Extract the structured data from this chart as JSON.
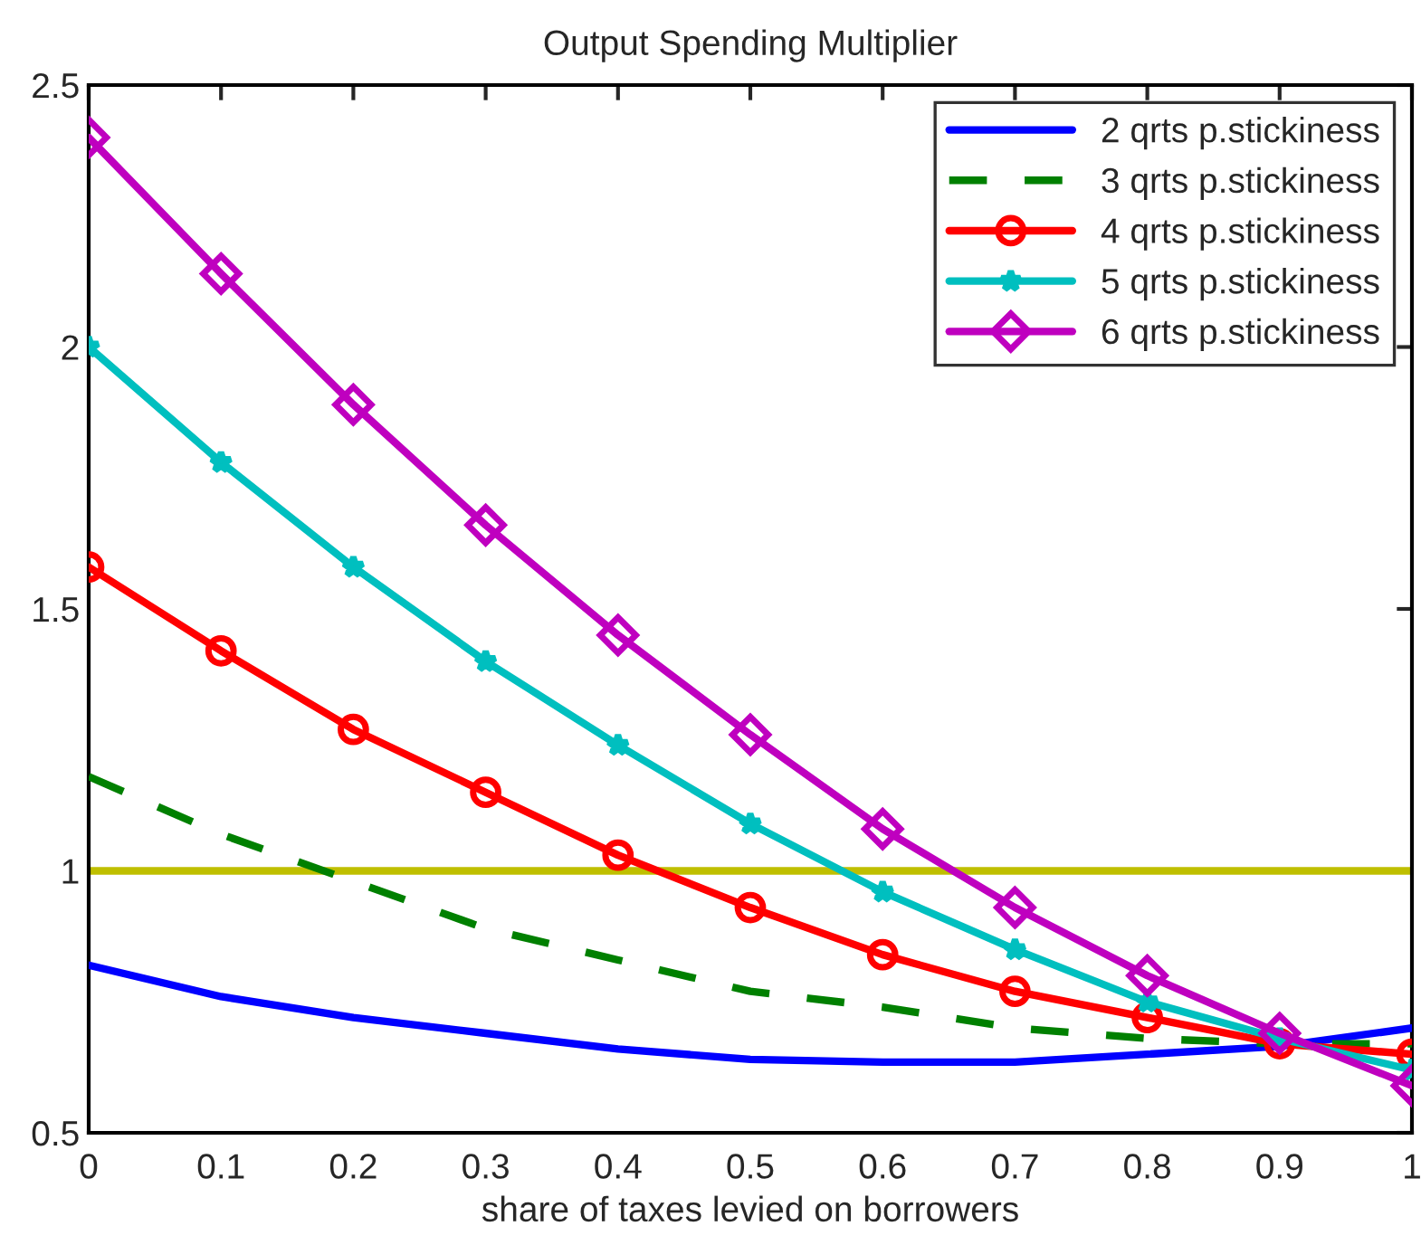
{
  "chart_data": {
    "type": "line",
    "title": "Output Spending Multiplier",
    "xlabel": "share of taxes levied on borrowers",
    "x": [
      0,
      0.1,
      0.2,
      0.3,
      0.4,
      0.5,
      0.6,
      0.7,
      0.8,
      0.9,
      1
    ],
    "series": [
      {
        "name": "2 qrts p.stickiness",
        "color": "#0000ff",
        "marker": "none",
        "line_style": "solid",
        "values": [
          0.82,
          0.76,
          0.72,
          0.69,
          0.66,
          0.64,
          0.635,
          0.635,
          0.65,
          0.665,
          0.7
        ]
      },
      {
        "name": "3 qrts p.stickiness",
        "color": "#008000",
        "marker": "none",
        "line_style": "dashed",
        "values": [
          1.18,
          1.07,
          0.98,
          0.89,
          0.83,
          0.77,
          0.74,
          0.7,
          0.68,
          0.67,
          0.67
        ]
      },
      {
        "name": "4 qrts p.stickiness",
        "color": "#ff0000",
        "marker": "circle",
        "line_style": "solid",
        "values": [
          1.58,
          1.42,
          1.27,
          1.15,
          1.03,
          0.93,
          0.84,
          0.77,
          0.72,
          0.67,
          0.65
        ]
      },
      {
        "name": "5 qrts p.stickiness",
        "color": "#00bfbf",
        "marker": "star",
        "line_style": "solid",
        "values": [
          2.0,
          1.78,
          1.58,
          1.4,
          1.24,
          1.09,
          0.96,
          0.85,
          0.75,
          0.68,
          0.62
        ]
      },
      {
        "name": "6 qrts p.stickiness",
        "color": "#bf00bf",
        "marker": "diamond",
        "line_style": "solid",
        "values": [
          2.4,
          2.14,
          1.89,
          1.66,
          1.45,
          1.26,
          1.08,
          0.93,
          0.8,
          0.69,
          0.59
        ]
      }
    ],
    "ref_lines": [
      {
        "axis": "y",
        "value": 1,
        "color": "#bfbf00",
        "line_style": "solid"
      }
    ],
    "xlim": [
      0,
      1
    ],
    "xticks": [
      0,
      0.1,
      0.2,
      0.3,
      0.4,
      0.5,
      0.6,
      0.7,
      0.8,
      0.9,
      1
    ],
    "ylim": [
      0.5,
      2.5
    ],
    "yticks": [
      0.5,
      1,
      1.5,
      2,
      2.5
    ],
    "grid": false,
    "legend": "top right"
  }
}
